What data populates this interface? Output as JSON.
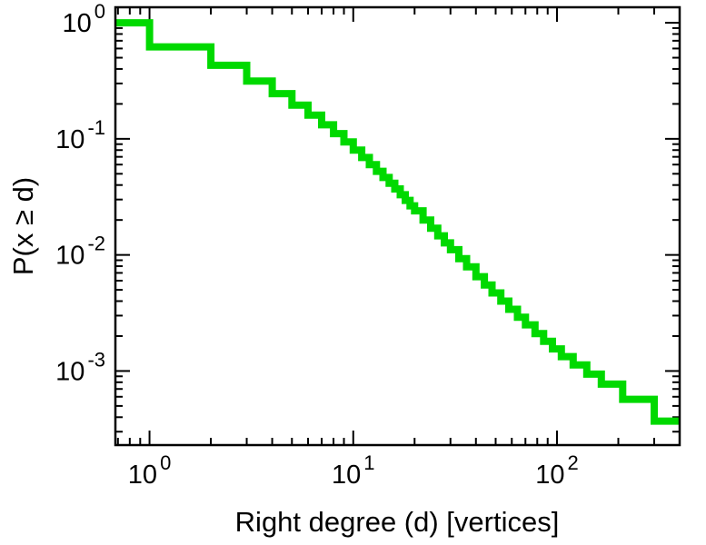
{
  "figure": {
    "background": "#ffffff",
    "axis_color": "#000000",
    "line_color": "#00d900",
    "line_width": 8
  },
  "chart_data": {
    "type": "line",
    "subtype": "ccdf-step-plot",
    "title": "",
    "xlabel": "Right degree (d) [vertices]",
    "ylabel": "P(x ≥ d)",
    "xscale": "log",
    "yscale": "log",
    "xlim": [
      0.68,
      400
    ],
    "ylim": [
      0.00023,
      1.36
    ],
    "grid": false,
    "legend": "none",
    "x_major_ticks": [
      1,
      10,
      100
    ],
    "x_tick_labels": [
      {
        "base": "10",
        "exp": "0"
      },
      {
        "base": "10",
        "exp": "1"
      },
      {
        "base": "10",
        "exp": "2"
      }
    ],
    "y_major_ticks": [
      1,
      0.1,
      0.01,
      0.001
    ],
    "y_tick_labels": [
      {
        "base": "10",
        "exp": "0"
      },
      {
        "base": "10",
        "exp": "-1"
      },
      {
        "base": "10",
        "exp": "-2"
      },
      {
        "base": "10",
        "exp": "-3"
      }
    ],
    "series": [
      {
        "name": "right-degree-ccdf",
        "color": "#00d900",
        "style": "step-post",
        "note": "each [d, P] pair gives the level P(x >= d) holding from d to the next listed d",
        "points": [
          [
            0.68,
            1.0
          ],
          [
            1,
            0.62
          ],
          [
            2,
            0.43
          ],
          [
            3,
            0.315
          ],
          [
            4,
            0.245
          ],
          [
            5,
            0.195
          ],
          [
            6,
            0.16
          ],
          [
            7,
            0.132
          ],
          [
            8,
            0.111
          ],
          [
            9,
            0.094
          ],
          [
            10,
            0.08
          ],
          [
            11,
            0.069
          ],
          [
            12,
            0.06
          ],
          [
            13,
            0.0525
          ],
          [
            14,
            0.0465
          ],
          [
            15,
            0.0415
          ],
          [
            16,
            0.037
          ],
          [
            17,
            0.033
          ],
          [
            18,
            0.0295
          ],
          [
            19,
            0.0265
          ],
          [
            20,
            0.024
          ],
          [
            22,
            0.02
          ],
          [
            24,
            0.017
          ],
          [
            26,
            0.0146
          ],
          [
            28,
            0.0127
          ],
          [
            30,
            0.0111
          ],
          [
            33,
            0.0093
          ],
          [
            36,
            0.0079
          ],
          [
            40,
            0.0065
          ],
          [
            44,
            0.0055
          ],
          [
            48,
            0.0047
          ],
          [
            53,
            0.004
          ],
          [
            58,
            0.0034
          ],
          [
            64,
            0.0029
          ],
          [
            70,
            0.0025
          ],
          [
            78,
            0.0021
          ],
          [
            86,
            0.0018
          ],
          [
            95,
            0.00155
          ],
          [
            105,
            0.00133
          ],
          [
            120,
            0.00113
          ],
          [
            140,
            0.00094
          ],
          [
            165,
            0.00077
          ],
          [
            210,
            0.00057
          ],
          [
            300,
            0.00037
          ]
        ]
      }
    ]
  }
}
